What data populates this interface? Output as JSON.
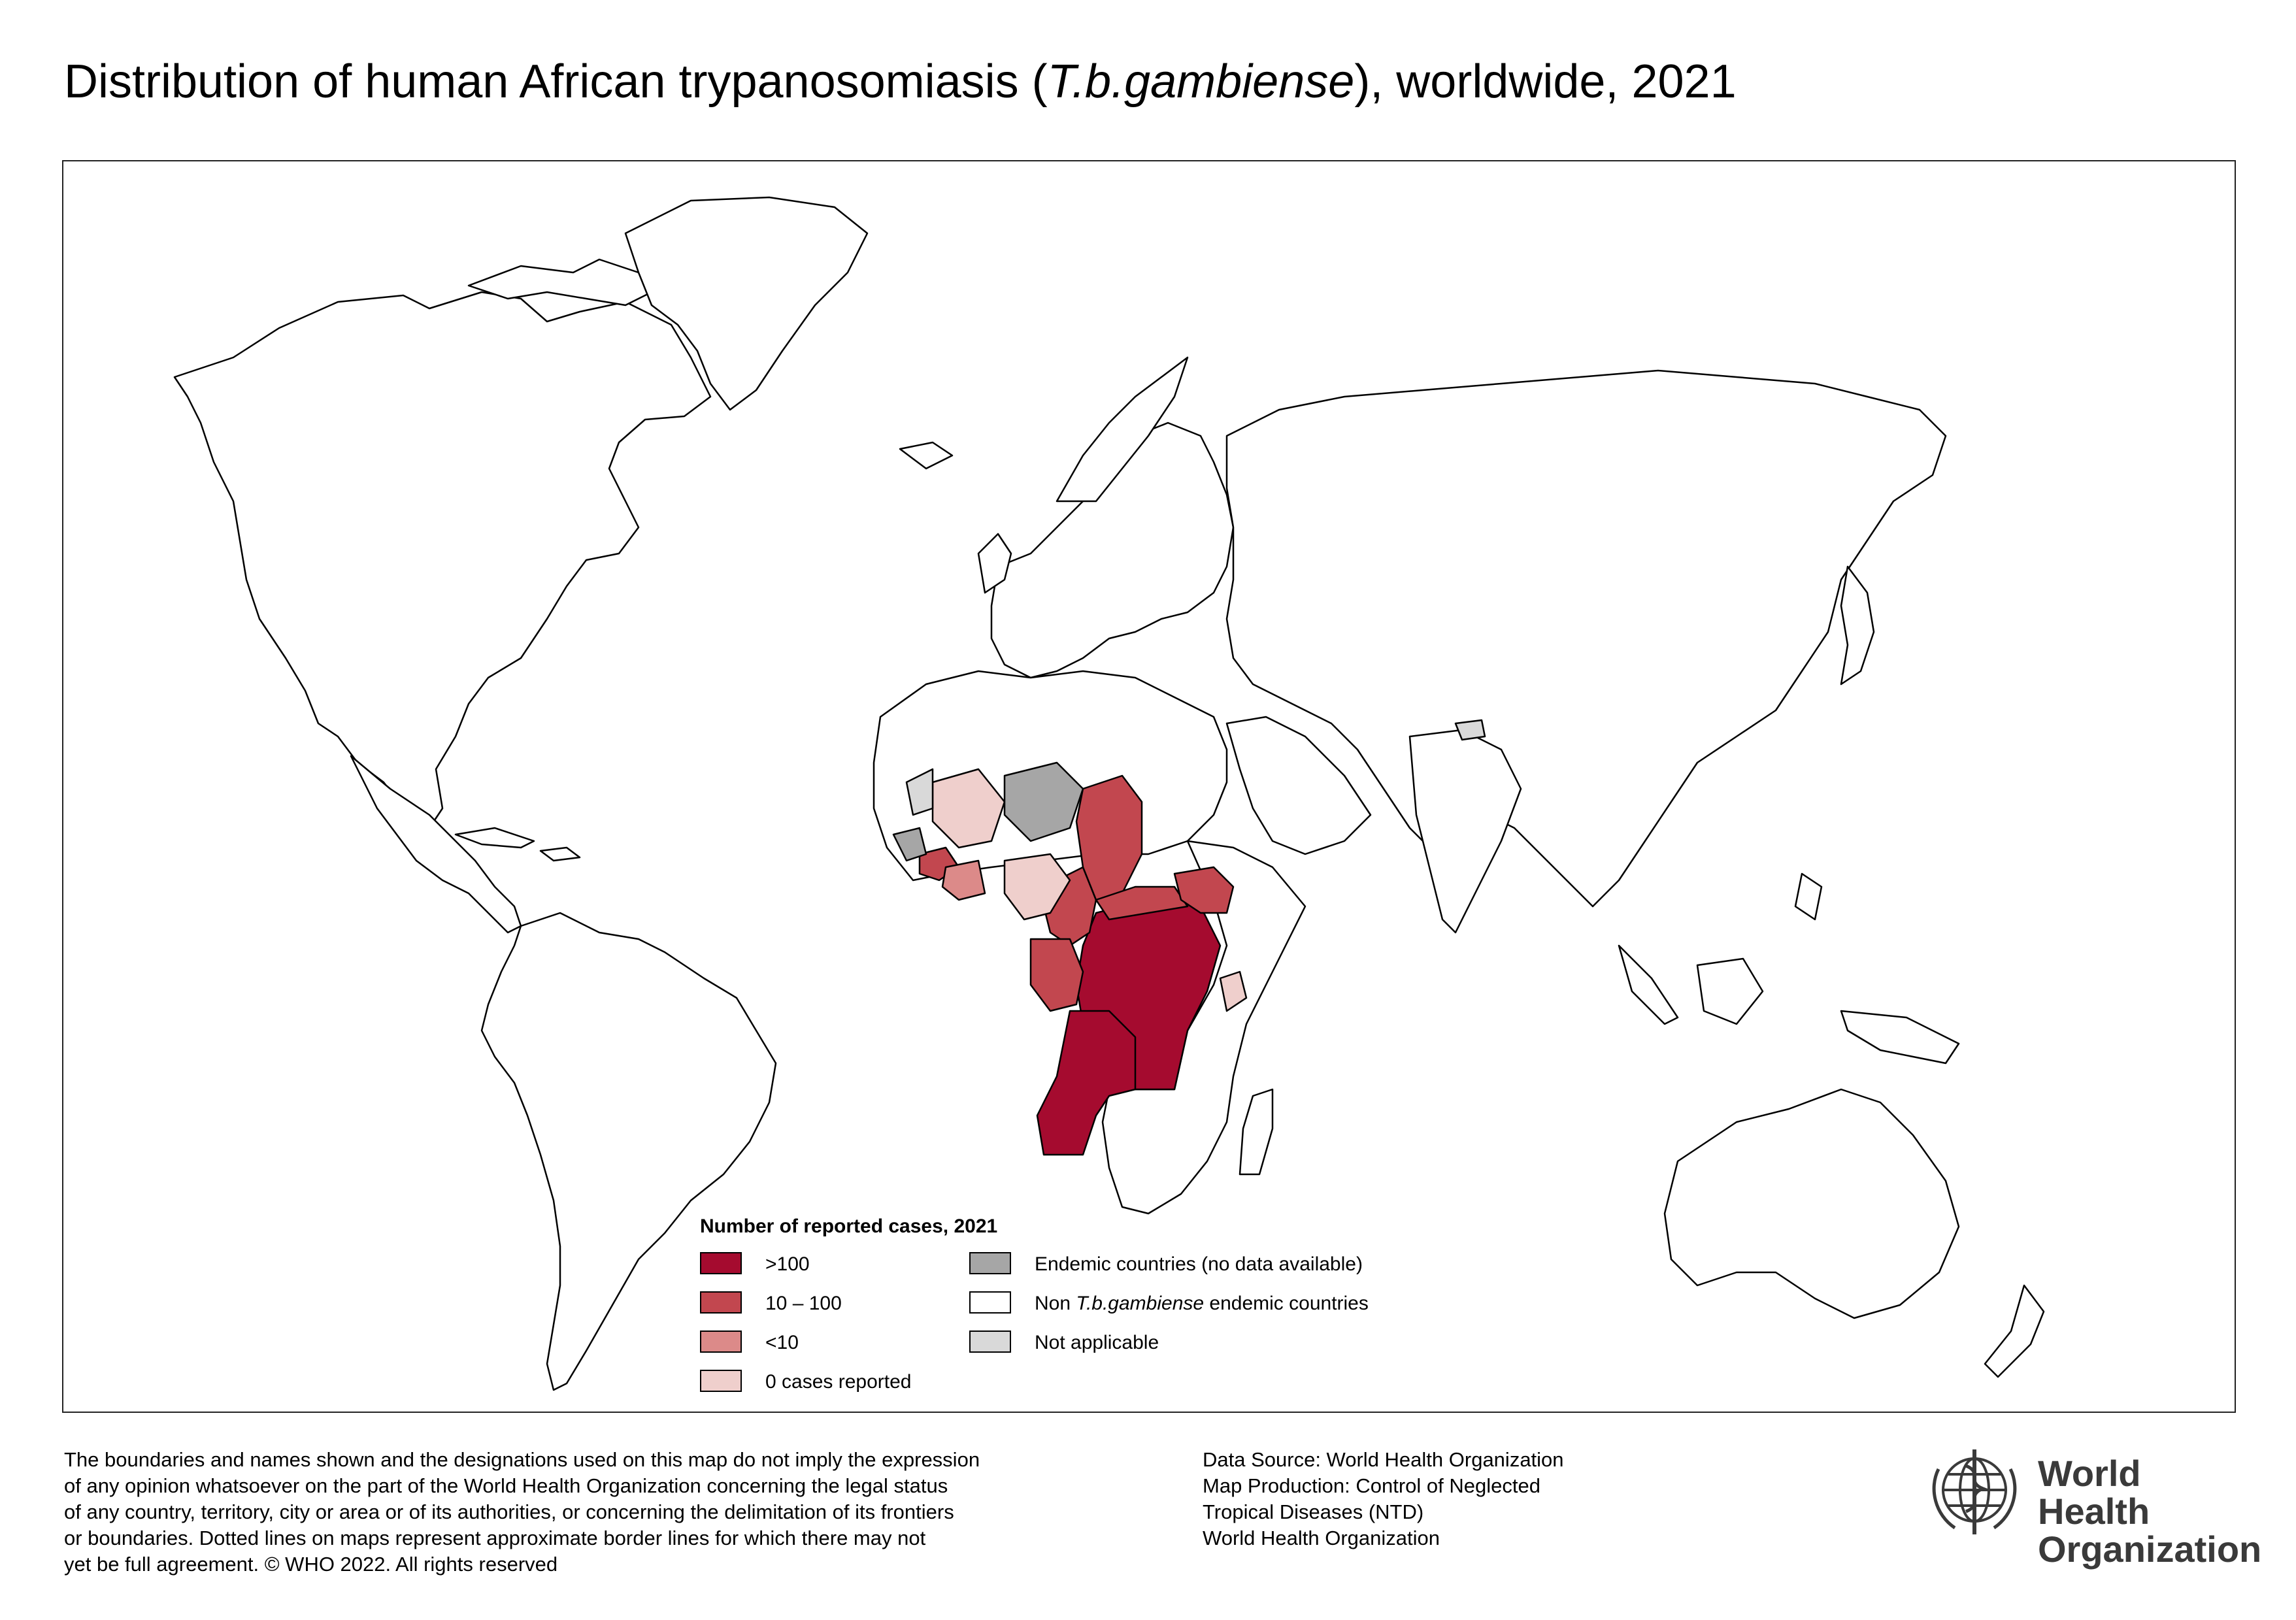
{
  "title": {
    "prefix": "Distribution of human African trypanosomiasis (",
    "italic": "T.b.gambiense",
    "suffix": "), worldwide, 2021"
  },
  "legend": {
    "title": "Number of reported cases, 2021",
    "items": [
      {
        "label": ">100",
        "color": "#a50b2f"
      },
      {
        "label": "10 – 100",
        "color": "#c2474f"
      },
      {
        "label": "<10",
        "color": "#dc8a89"
      },
      {
        "label": "0 cases reported",
        "color": "#efcfcc"
      },
      {
        "label": "Endemic countries (no data available)",
        "color": "#a6a6a6"
      },
      {
        "label_prefix": "Non ",
        "label_italic": "T.b.gambiense",
        "label_suffix": " endemic countries",
        "color": "#ffffff"
      },
      {
        "label": "Not applicable",
        "color": "#d9d9d9"
      }
    ]
  },
  "disclaimer": [
    "The boundaries and names shown and the designations used on this map do not imply the expression",
    "of any opinion whatsoever on the part of the World Health Organization concerning the legal status",
    "of any country, territory, city or area or of its authorities, or concerning the delimitation of its frontiers",
    "or boundaries. Dotted lines on maps represent approximate border lines for which there may not",
    "yet be full agreement. © WHO 2022. All rights reserved"
  ],
  "source": [
    "Data Source: World Health Organization",
    "Map Production: Control of Neglected",
    "Tropical Diseases (NTD)",
    "World Health Organization"
  ],
  "who_logo": {
    "line1": "World Health",
    "line2": "Organization"
  },
  "colors": {
    "border": "#000000",
    "land": "#ffffff",
    "over100": "#a50b2f",
    "10to100": "#c2474f",
    "under10": "#dc8a89",
    "zero": "#efcfcc",
    "nodata": "#a6a6a6",
    "notapplicable": "#d9d9d9"
  }
}
